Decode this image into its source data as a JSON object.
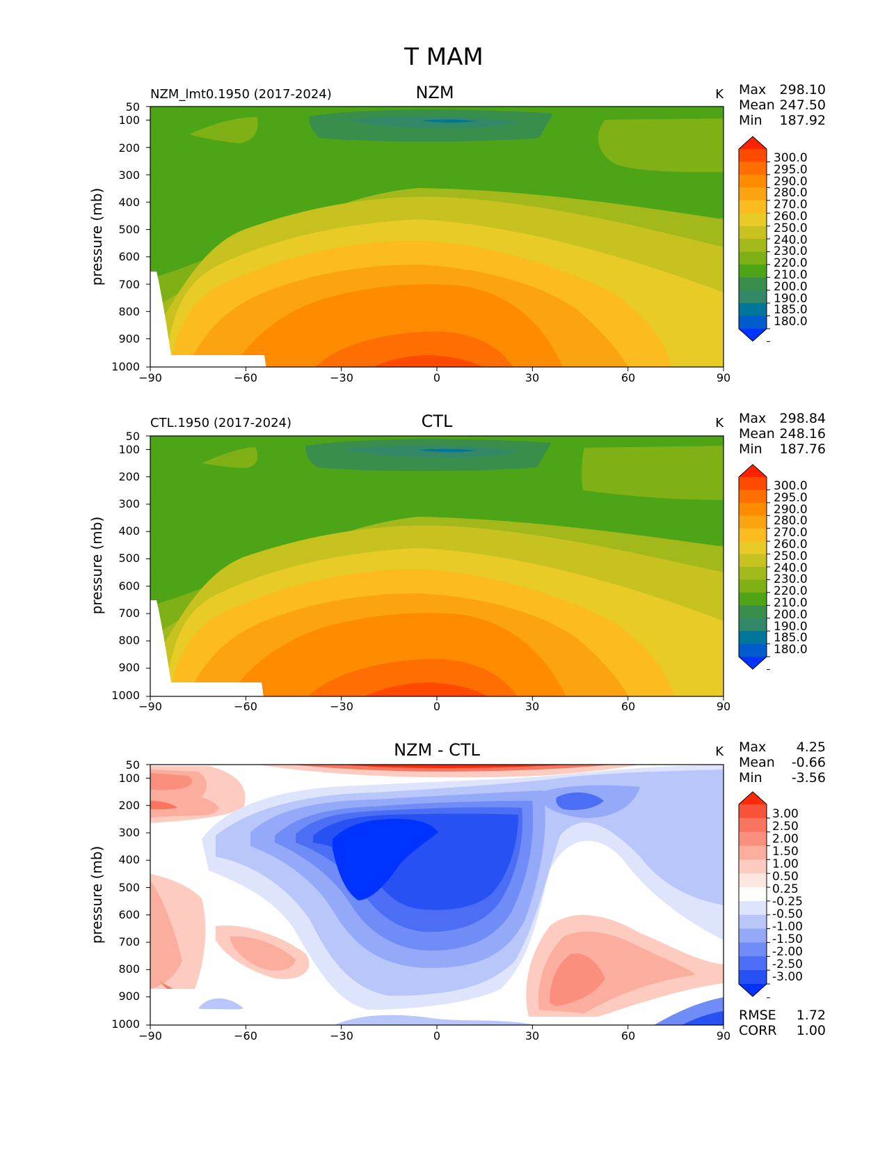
{
  "figure_title": "T MAM",
  "chart_data": [
    {
      "type": "contour",
      "panel": "top",
      "title": "NZM",
      "left_title": "NZM_lmt0.1950 (2017-2024)",
      "units": "K",
      "xlabel": "",
      "ylabel": "pressure (mb)",
      "x_ticks": [
        "−90",
        "−60",
        "−30",
        "0",
        "30",
        "60",
        "90"
      ],
      "y_ticks": [
        "50",
        "100",
        "200",
        "300",
        "400",
        "500",
        "600",
        "700",
        "800",
        "900",
        "1000"
      ],
      "xlim": [
        -90,
        90
      ],
      "ylim": [
        1000,
        50
      ],
      "stats": {
        "max_label": "Max",
        "max": "298.10",
        "mean_label": "Mean",
        "mean": "247.50",
        "min_label": "Min",
        "min": "187.92"
      },
      "colorbar": {
        "labels": [
          "300.0",
          "295.0",
          "290.0",
          "280.0",
          "270.0",
          "260.0",
          "250.0",
          "240.0",
          "230.0",
          "220.0",
          "210.0",
          "200.0",
          "190.0",
          "185.0",
          "180.0"
        ],
        "colors": [
          "#ff2200",
          "#ff4a00",
          "#ff6e00",
          "#ff8c00",
          "#fca312",
          "#fcbb1e",
          "#e8cb26",
          "#c7c21f",
          "#a3b81a",
          "#7fb117",
          "#4da416",
          "#3a8e4c",
          "#338868",
          "#00769a",
          "#005ccc",
          "#0033ff"
        ]
      }
    },
    {
      "type": "contour",
      "panel": "middle",
      "title": "CTL",
      "left_title": "CTL.1950 (2017-2024)",
      "units": "K",
      "xlabel": "",
      "ylabel": "pressure (mb)",
      "x_ticks": [
        "−90",
        "−60",
        "−30",
        "0",
        "30",
        "60",
        "90"
      ],
      "y_ticks": [
        "50",
        "100",
        "200",
        "300",
        "400",
        "500",
        "600",
        "700",
        "800",
        "900",
        "1000"
      ],
      "xlim": [
        -90,
        90
      ],
      "ylim": [
        1000,
        50
      ],
      "stats": {
        "max_label": "Max",
        "max": "298.84",
        "mean_label": "Mean",
        "mean": "248.16",
        "min_label": "Min",
        "min": "187.76"
      },
      "colorbar": {
        "labels": [
          "300.0",
          "295.0",
          "290.0",
          "280.0",
          "270.0",
          "260.0",
          "250.0",
          "240.0",
          "230.0",
          "220.0",
          "210.0",
          "200.0",
          "190.0",
          "185.0",
          "180.0"
        ],
        "colors": [
          "#ff2200",
          "#ff4a00",
          "#ff6e00",
          "#ff8c00",
          "#fca312",
          "#fcbb1e",
          "#e8cb26",
          "#c7c21f",
          "#a3b81a",
          "#7fb117",
          "#4da416",
          "#3a8e4c",
          "#338868",
          "#00769a",
          "#005ccc",
          "#0033ff"
        ]
      }
    },
    {
      "type": "contour",
      "panel": "bottom",
      "title": "NZM - CTL",
      "units": "K",
      "xlabel": "",
      "ylabel": "pressure (mb)",
      "x_ticks": [
        "−90",
        "−60",
        "−30",
        "0",
        "30",
        "60",
        "90"
      ],
      "y_ticks": [
        "50",
        "100",
        "200",
        "300",
        "400",
        "500",
        "600",
        "700",
        "800",
        "900",
        "1000"
      ],
      "xlim": [
        -90,
        90
      ],
      "ylim": [
        1000,
        50
      ],
      "stats": {
        "max_label": "Max",
        "max": "4.25",
        "mean_label": "Mean",
        "mean": "-0.66",
        "min_label": "Min",
        "min": "-3.56"
      },
      "error_stats": {
        "rmse_label": "RMSE",
        "rmse": "1.72",
        "corr_label": "CORR",
        "corr": "1.00"
      },
      "colorbar": {
        "labels": [
          "3.00",
          "2.50",
          "2.00",
          "1.50",
          "1.00",
          "0.50",
          "0.25",
          "-0.25",
          "-0.50",
          "-1.00",
          "-1.50",
          "-2.00",
          "-2.50",
          "-3.00"
        ],
        "colors": [
          "#ff2a0a",
          "#f8523a",
          "#f97560",
          "#fb8f7e",
          "#fcae9e",
          "#fdcbc0",
          "#fee6e0",
          "#ffffff",
          "#dde4fb",
          "#b8c6f9",
          "#94a9f7",
          "#708cf6",
          "#4c6ef4",
          "#2751f2",
          "#0033ff"
        ]
      }
    }
  ]
}
